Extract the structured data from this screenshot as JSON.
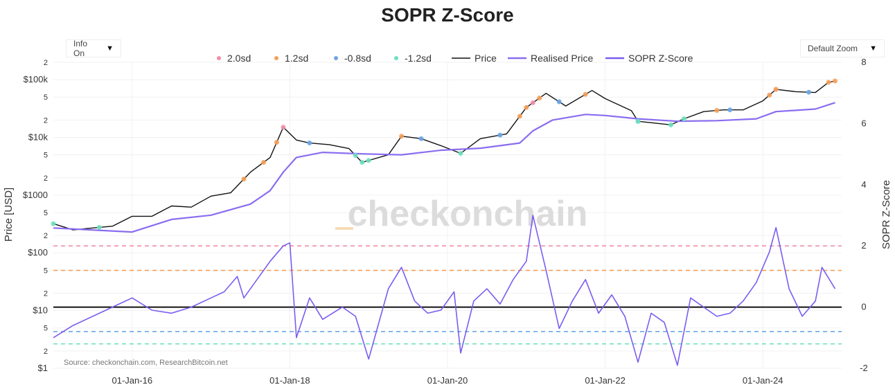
{
  "title": "SOPR Z-Score",
  "controls": {
    "info_label": "Info On",
    "zoom_label": "Default Zoom"
  },
  "source": "Source: checkonchain.com, ResearchBitcoin.net",
  "watermark": "checkonchain",
  "colors": {
    "sd_2_0": "#ef8fa7",
    "sd_1_2": "#f5a05a",
    "sd_neg_0_8": "#6aa6e6",
    "sd_neg_1_2": "#6ee0c0",
    "price": "#111111",
    "realised_price": "#8a6cf0",
    "zscore": "#7b5cf0"
  },
  "chart_data": {
    "type": "line",
    "title": "SOPR Z-Score",
    "legend": [
      {
        "name": "2.0sd",
        "kind": "dot",
        "color": "#ef8fa7"
      },
      {
        "name": "1.2sd",
        "kind": "dot",
        "color": "#f5a05a"
      },
      {
        "name": "-0.8sd",
        "kind": "dot",
        "color": "#6aa6e6"
      },
      {
        "name": "-1.2sd",
        "kind": "dot",
        "color": "#6ee0c0"
      },
      {
        "name": "Price",
        "kind": "line",
        "color": "#111111"
      },
      {
        "name": "Realised Price",
        "kind": "line",
        "color": "#8a6cf0"
      },
      {
        "name": "SOPR Z-Score",
        "kind": "line",
        "color": "#7b5cf0"
      }
    ],
    "legend_position": "top-center",
    "x_axis": {
      "tick_labels": [
        "01-Jan-16",
        "01-Jan-18",
        "01-Jan-20",
        "01-Jan-22",
        "01-Jan-24"
      ],
      "range": [
        "2015-01-01",
        "2025-01-01"
      ]
    },
    "y_left": {
      "label": "Price [USD]",
      "scale": "log",
      "range": [
        1,
        200000
      ],
      "tick_labels": [
        {
          "v": 1,
          "t": "$1"
        },
        {
          "v": 2,
          "t": "2"
        },
        {
          "v": 5,
          "t": "5"
        },
        {
          "v": 10,
          "t": "$10"
        },
        {
          "v": 20,
          "t": "2"
        },
        {
          "v": 50,
          "t": "5"
        },
        {
          "v": 100,
          "t": "$100"
        },
        {
          "v": 200,
          "t": "2"
        },
        {
          "v": 500,
          "t": "5"
        },
        {
          "v": 1000,
          "t": "$1000"
        },
        {
          "v": 2000,
          "t": "2"
        },
        {
          "v": 5000,
          "t": "5"
        },
        {
          "v": 10000,
          "t": "$10k"
        },
        {
          "v": 20000,
          "t": "2"
        },
        {
          "v": 50000,
          "t": "5"
        },
        {
          "v": 100000,
          "t": "$100k"
        },
        {
          "v": 200000,
          "t": "2"
        }
      ]
    },
    "y_right": {
      "label": "SOPR Z-Score",
      "range": [
        -2,
        8
      ],
      "tick_labels": [
        -2,
        0,
        2,
        4,
        6,
        8
      ]
    },
    "reference_lines": [
      {
        "name": "2.0sd",
        "y": 2.0,
        "color": "#ef8fa7"
      },
      {
        "name": "1.2sd",
        "y": 1.2,
        "color": "#f5a05a"
      },
      {
        "name": "0",
        "y": 0,
        "color": "#111111"
      },
      {
        "name": "-0.8sd",
        "y": -0.8,
        "color": "#6aa6e6"
      },
      {
        "name": "-1.2sd",
        "y": -1.2,
        "color": "#6ee0c0"
      }
    ],
    "grid": true,
    "series": [
      {
        "name": "Price",
        "x": [
          "2015-01",
          "2015-04",
          "2015-07",
          "2015-10",
          "2016-01",
          "2016-04",
          "2016-07",
          "2016-10",
          "2017-01",
          "2017-04",
          "2017-07",
          "2017-10",
          "2017-12",
          "2018-02",
          "2018-04",
          "2018-07",
          "2018-10",
          "2018-12",
          "2019-04",
          "2019-06",
          "2019-09",
          "2019-12",
          "2020-03",
          "2020-06",
          "2020-10",
          "2021-01",
          "2021-04",
          "2021-07",
          "2021-11",
          "2022-01",
          "2022-05",
          "2022-06",
          "2022-11",
          "2023-01",
          "2023-04",
          "2023-07",
          "2023-10",
          "2024-01",
          "2024-03",
          "2024-06",
          "2024-09",
          "2024-11",
          "2024-12"
        ],
        "values": [
          320,
          250,
          270,
          290,
          430,
          430,
          650,
          620,
          960,
          1100,
          2500,
          4500,
          15000,
          9000,
          8000,
          7500,
          6400,
          3700,
          5000,
          10500,
          9500,
          7200,
          5300,
          9500,
          11500,
          33000,
          58000,
          35000,
          65000,
          47000,
          29000,
          19000,
          16500,
          21000,
          28000,
          30000,
          30000,
          43000,
          68000,
          62000,
          60000,
          90000,
          95000
        ]
      },
      {
        "name": "Realised Price",
        "x": [
          "2015-01",
          "2016-01",
          "2016-07",
          "2017-01",
          "2017-07",
          "2017-10",
          "2017-12",
          "2018-02",
          "2018-06",
          "2018-12",
          "2019-06",
          "2019-12",
          "2020-06",
          "2020-12",
          "2021-02",
          "2021-05",
          "2021-10",
          "2022-01",
          "2022-06",
          "2022-12",
          "2023-06",
          "2023-12",
          "2024-03",
          "2024-09",
          "2024-12"
        ],
        "values": [
          270,
          230,
          380,
          450,
          700,
          1200,
          2500,
          4500,
          5500,
          5200,
          5000,
          6000,
          6500,
          8000,
          13000,
          20000,
          25000,
          24000,
          21000,
          19000,
          19500,
          21000,
          28000,
          31000,
          40000
        ]
      },
      {
        "name": "SOPR Z-Score",
        "x": [
          "2015-01",
          "2015-04",
          "2015-07",
          "2015-10",
          "2016-01",
          "2016-04",
          "2016-07",
          "2016-10",
          "2017-01",
          "2017-03",
          "2017-05",
          "2017-06",
          "2017-08",
          "2017-10",
          "2017-12",
          "2018-01",
          "2018-02",
          "2018-04",
          "2018-06",
          "2018-09",
          "2018-11",
          "2019-01",
          "2019-04",
          "2019-06",
          "2019-08",
          "2019-10",
          "2019-12",
          "2020-02",
          "2020-03",
          "2020-05",
          "2020-07",
          "2020-09",
          "2020-11",
          "2021-01",
          "2021-02",
          "2021-04",
          "2021-06",
          "2021-08",
          "2021-10",
          "2021-12",
          "2022-02",
          "2022-04",
          "2022-06",
          "2022-08",
          "2022-10",
          "2022-12",
          "2023-02",
          "2023-04",
          "2023-06",
          "2023-08",
          "2023-10",
          "2023-12",
          "2024-02",
          "2024-03",
          "2024-05",
          "2024-07",
          "2024-09",
          "2024-10",
          "2024-12"
        ],
        "values": [
          -1.0,
          -0.6,
          -0.3,
          0.0,
          0.3,
          -0.1,
          -0.2,
          0.0,
          0.3,
          0.5,
          1.0,
          0.3,
          0.9,
          1.5,
          2.0,
          2.1,
          -1.0,
          0.3,
          -0.4,
          0.0,
          -0.3,
          -1.7,
          0.6,
          1.3,
          0.2,
          -0.2,
          -0.1,
          0.5,
          -1.5,
          0.2,
          0.6,
          0.1,
          0.9,
          1.5,
          3.0,
          1.2,
          -0.7,
          0.2,
          0.9,
          -0.2,
          0.4,
          -0.3,
          -1.8,
          -0.2,
          -0.5,
          -1.9,
          0.3,
          0.0,
          -0.3,
          -0.2,
          0.2,
          0.8,
          1.8,
          2.6,
          0.6,
          -0.3,
          0.2,
          1.3,
          0.6
        ]
      }
    ],
    "band_markers": [
      {
        "band": "2.0sd",
        "x": [
          "2017-12",
          "2021-02",
          "2024-03"
        ]
      },
      {
        "band": "1.2sd",
        "x": [
          "2017-06",
          "2017-09",
          "2017-11",
          "2019-06",
          "2020-12",
          "2021-01",
          "2021-03",
          "2021-10",
          "2023-06",
          "2024-02",
          "2024-03",
          "2024-11",
          "2024-12"
        ]
      },
      {
        "band": "-0.8sd",
        "x": [
          "2018-04",
          "2019-09",
          "2020-09",
          "2021-06",
          "2022-06",
          "2023-08",
          "2024-08"
        ]
      },
      {
        "band": "-1.2sd",
        "x": [
          "2015-01",
          "2015-08",
          "2018-11",
          "2018-12",
          "2019-01",
          "2020-03",
          "2022-06",
          "2022-11",
          "2023-01"
        ]
      }
    ]
  }
}
